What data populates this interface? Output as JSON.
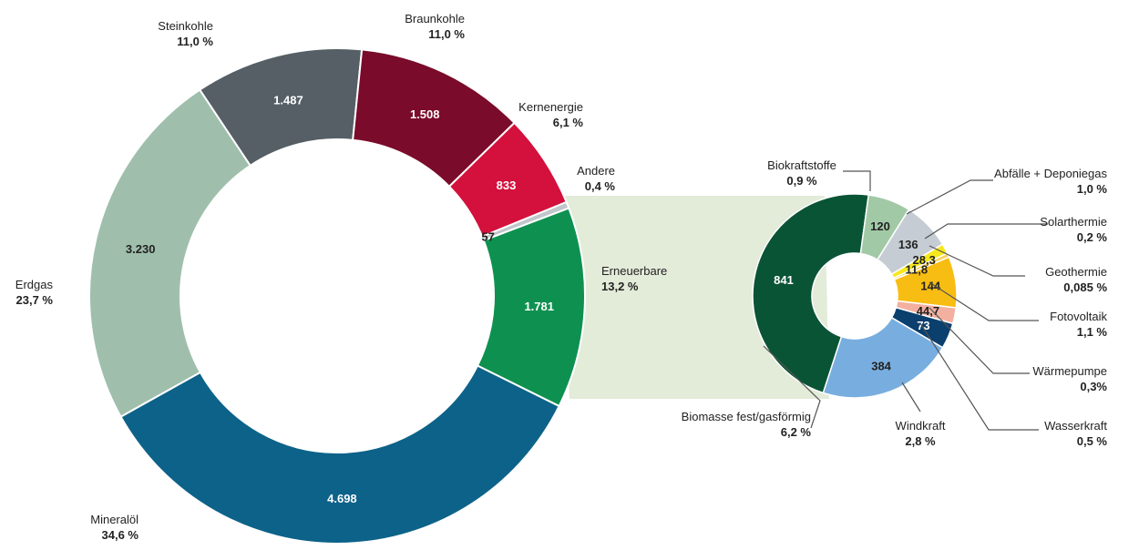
{
  "chart_data": [
    {
      "type": "pie",
      "style": "donut",
      "slices": [
        {
          "name": "Mineralöl",
          "value": 4698,
          "value_label": "4.698",
          "share_label": "34,6 %",
          "color": "#0d6289"
        },
        {
          "name": "Erdgas",
          "value": 3230,
          "value_label": "3.230",
          "share_label": "23,7 %",
          "color": "#9fbfac"
        },
        {
          "name": "Steinkohle",
          "value": 1487,
          "value_label": "1.487",
          "share_label": "11,0 %",
          "color": "#555f65"
        },
        {
          "name": "Braunkohle",
          "value": 1508,
          "value_label": "1.508",
          "share_label": "11,0 %",
          "color": "#7a0b2a"
        },
        {
          "name": "Kernenergie",
          "value": 833,
          "value_label": "833",
          "share_label": "6,1 %",
          "color": "#d4103c"
        },
        {
          "name": "Andere",
          "value": 57,
          "value_label": "57",
          "share_label": "0,4 %",
          "color": "#c0c6c9"
        },
        {
          "name": "Erneuerbare",
          "value": 1781,
          "value_label": "1.781",
          "share_label": "13,2 %",
          "color": "#0e9150"
        }
      ]
    },
    {
      "type": "pie",
      "style": "donut",
      "breakdown_of": "Erneuerbare",
      "slices": [
        {
          "name": "Biomasse fest/gasförmig",
          "value": 841,
          "value_label": "841",
          "share_label": "6,2 %",
          "color": "#0a5436"
        },
        {
          "name": "Biokraftstoffe",
          "value": 120,
          "value_label": "120",
          "share_label": "0,9 %",
          "color": "#a2c9a6"
        },
        {
          "name": "Abfälle + Deponiegas",
          "value": 136,
          "value_label": "136",
          "share_label": "1,0 %",
          "color": "#c5ccd3"
        },
        {
          "name": "Solarthermie",
          "value": 28.3,
          "value_label": "28,3",
          "share_label": "0,2 %",
          "color": "#f6e81d"
        },
        {
          "name": "Geothermie",
          "value": 11.8,
          "value_label": "11,8",
          "share_label": "0,085 %",
          "color": "#f7d45c"
        },
        {
          "name": "Fotovoltaik",
          "value": 144,
          "value_label": "144",
          "share_label": "1,1 %",
          "color": "#f8bd12"
        },
        {
          "name": "Wärmepumpe",
          "value": 44.7,
          "value_label": "44,7",
          "share_label": "0,3%",
          "color": "#f3b0a0"
        },
        {
          "name": "Wasserkraft",
          "value": 73,
          "value_label": "73",
          "share_label": "0,5 %",
          "color": "#0a3f6e"
        },
        {
          "name": "Windkraft",
          "value": 384,
          "value_label": "384",
          "share_label": "2,8 %",
          "color": "#78aedf"
        }
      ]
    }
  ]
}
